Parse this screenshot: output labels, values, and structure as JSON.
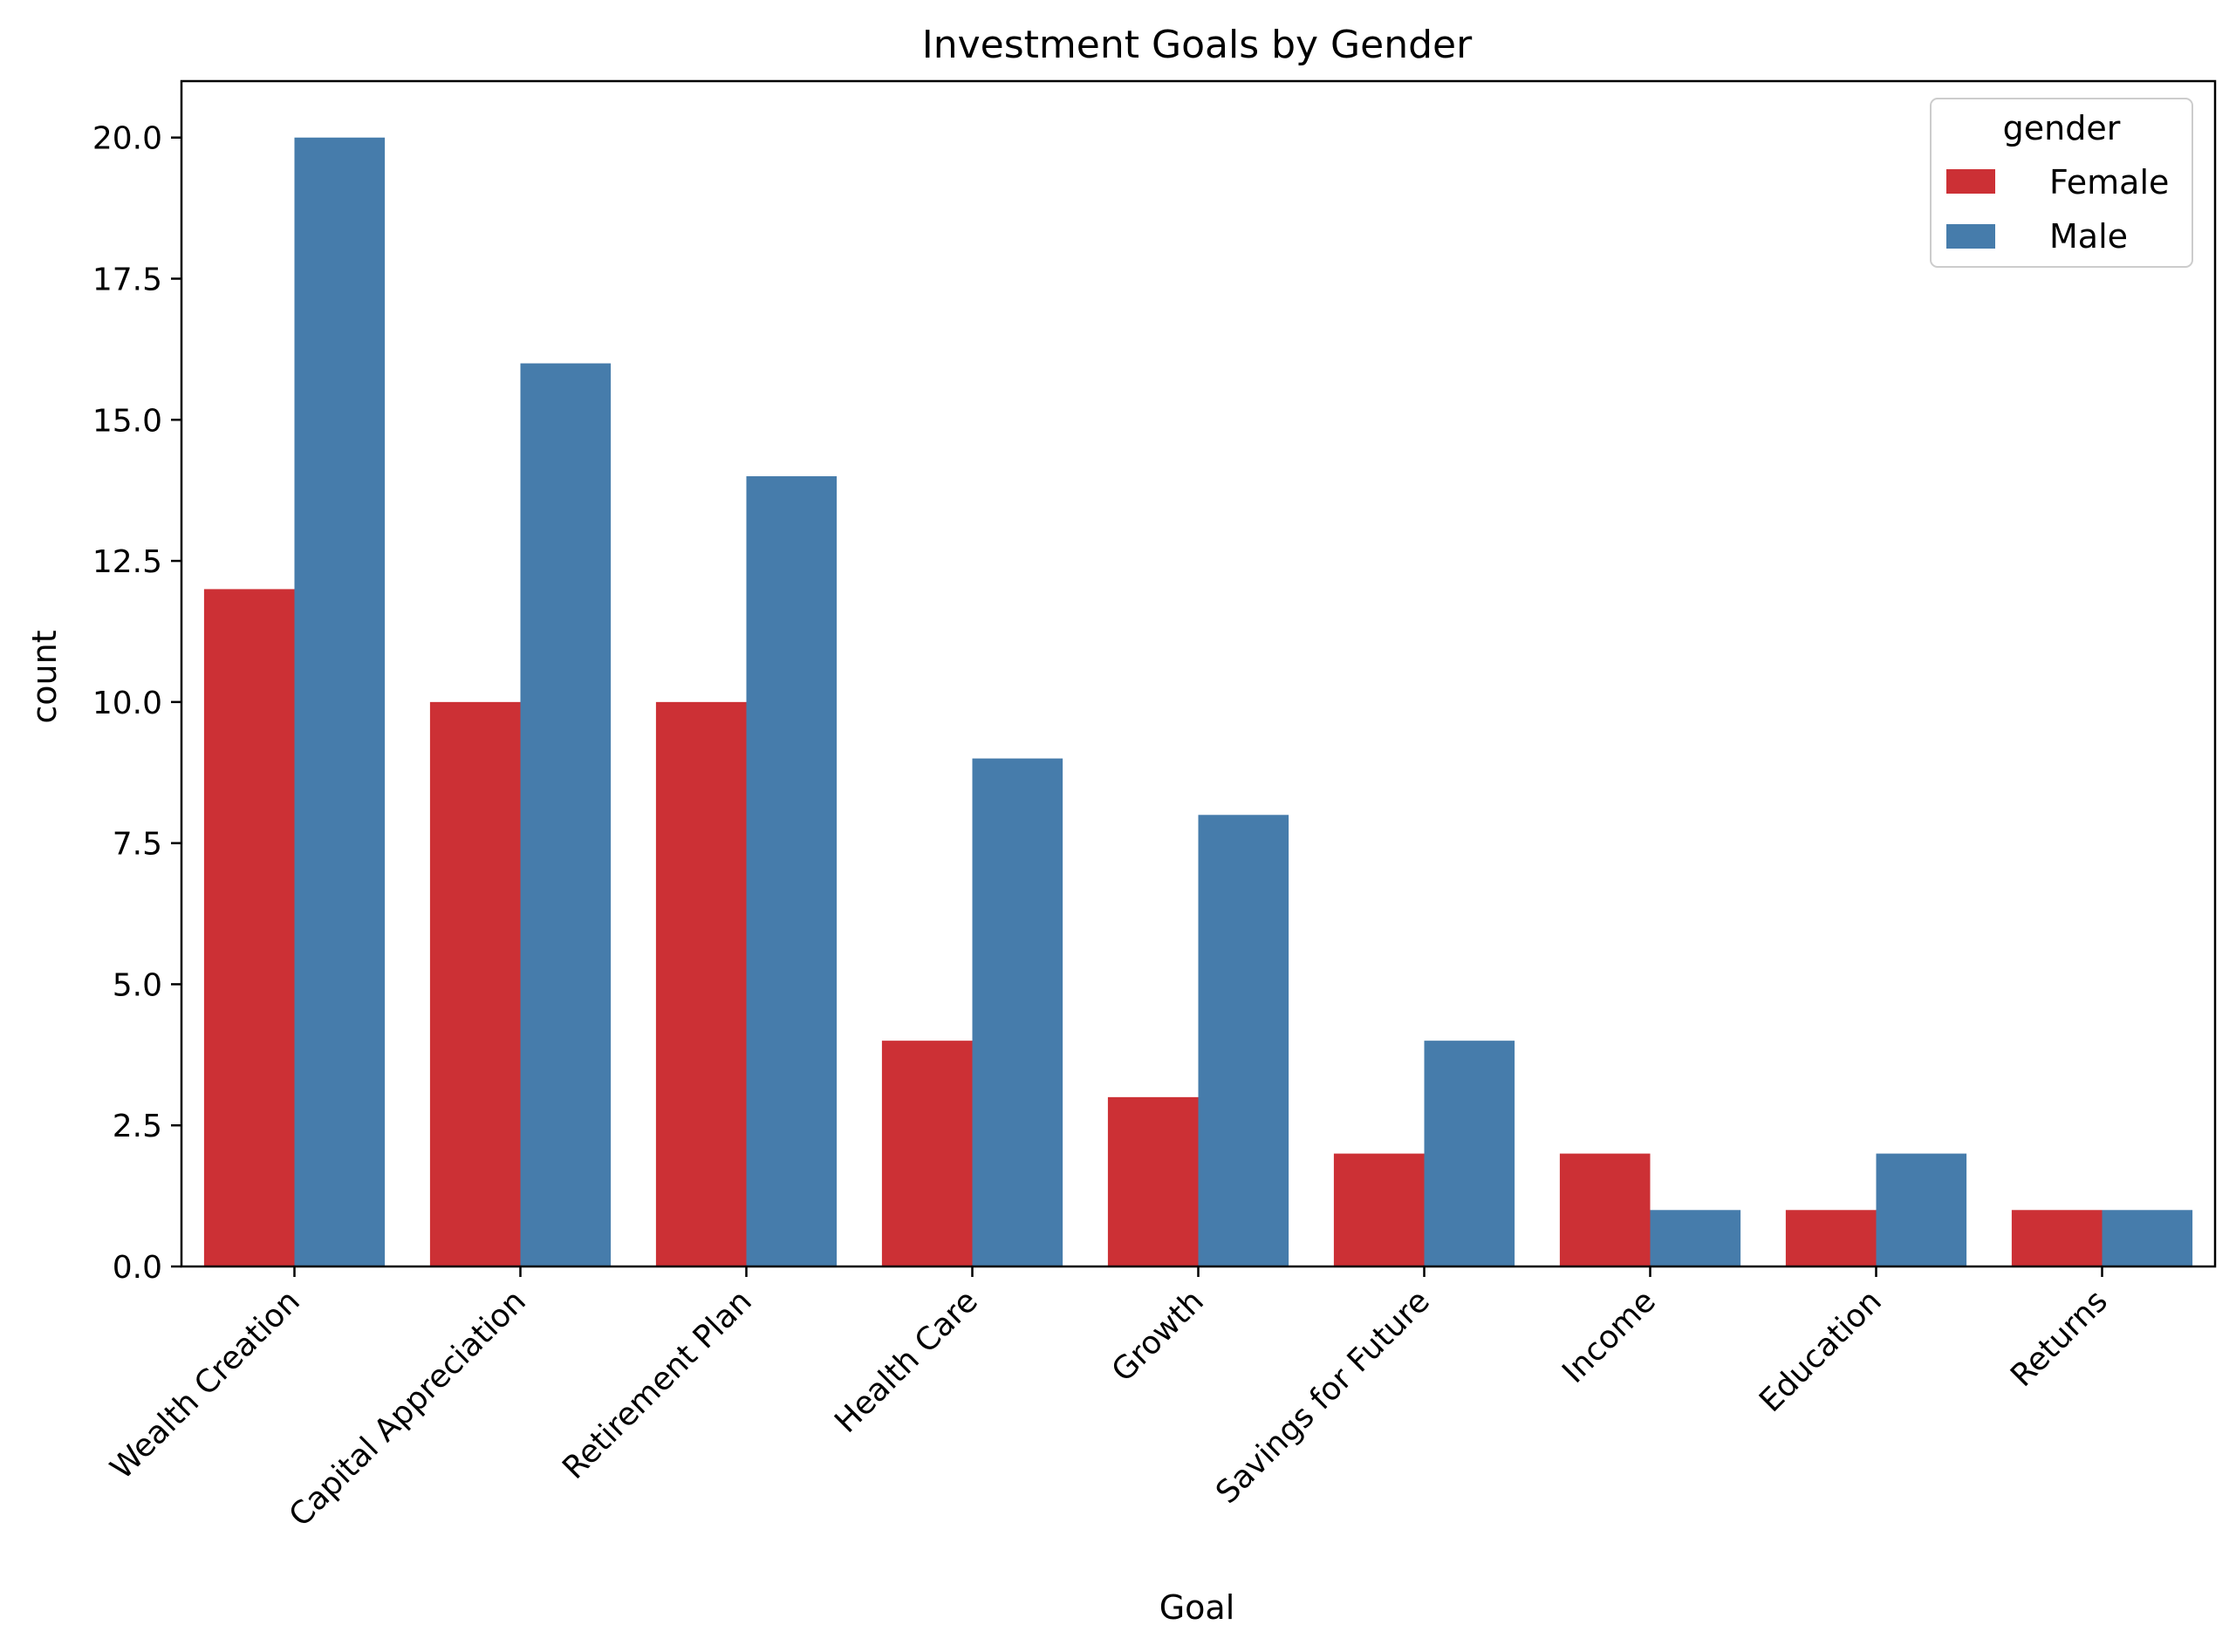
{
  "chart_data": {
    "type": "bar",
    "title": "Investment Goals by Gender",
    "xlabel": "Goal",
    "ylabel": "count",
    "ylim": [
      0,
      21
    ],
    "yticks": [
      "0.0",
      "2.5",
      "5.0",
      "7.5",
      "10.0",
      "12.5",
      "15.0",
      "17.5",
      "20.0"
    ],
    "categories": [
      "Wealth Creation",
      "Capital Appreciation",
      "Retirement Plan",
      "Health Care",
      "Growth",
      "Savings for Future",
      "Income",
      "Education",
      "Returns"
    ],
    "series": [
      {
        "name": "Female",
        "color": "#cc3035",
        "values": [
          12,
          10,
          10,
          4,
          3,
          2,
          2,
          1,
          1
        ]
      },
      {
        "name": "Male",
        "color": "#467cab",
        "values": [
          20,
          16,
          14,
          9,
          8,
          4,
          1,
          2,
          1
        ]
      }
    ],
    "legend": {
      "title": "gender",
      "placement": "top-right"
    },
    "grid": false
  }
}
